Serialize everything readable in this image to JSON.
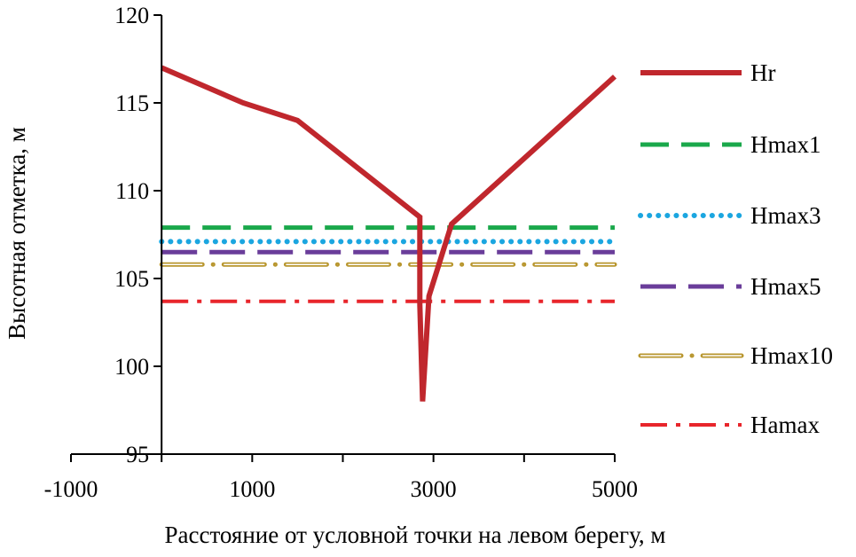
{
  "chart_data": {
    "type": "line",
    "title": "",
    "xlabel": "Расстояние от условной точки на левом берегу, м",
    "ylabel": "Высотная отметка, м",
    "xlim": [
      -1000,
      5000
    ],
    "ylim": [
      95,
      120
    ],
    "xticks": [
      -1000,
      1000,
      3000,
      5000
    ],
    "xtick_labels": [
      "-1000",
      "1000",
      "3000",
      "5000"
    ],
    "yticks": [
      95,
      100,
      105,
      110,
      115,
      120
    ],
    "ytick_labels": [
      "95",
      "100",
      "105",
      "110",
      "115",
      "120"
    ],
    "grid": false,
    "legend_position": "right",
    "series": [
      {
        "name": "Hr",
        "color": "#c0272d",
        "style": "solid",
        "x": [
          0,
          900,
          1500,
          2850,
          2850,
          2880,
          2950,
          3200,
          5000
        ],
        "y": [
          117,
          115,
          114,
          108.5,
          103.5,
          98,
          104,
          108.1,
          116.5
        ]
      },
      {
        "name": "Hmax1",
        "color": "#1aa84b",
        "style": "dash",
        "x": [
          0,
          5000
        ],
        "y": [
          107.9,
          107.9
        ]
      },
      {
        "name": "Hmax3",
        "color": "#1ba6e0",
        "style": "dot",
        "x": [
          0,
          5000
        ],
        "y": [
          107.1,
          107.1
        ]
      },
      {
        "name": "Hmax5",
        "color": "#6a3d9a",
        "style": "longdash",
        "x": [
          0,
          5000
        ],
        "y": [
          106.5,
          106.5
        ]
      },
      {
        "name": "Hmax10",
        "color": "#b8962e",
        "style": "double-dashdot",
        "x": [
          0,
          5000
        ],
        "y": [
          105.8,
          105.8
        ]
      },
      {
        "name": "Hamax",
        "color": "#e8252b",
        "style": "dashdot",
        "x": [
          0,
          5000
        ],
        "y": [
          103.7,
          103.7
        ]
      }
    ]
  }
}
